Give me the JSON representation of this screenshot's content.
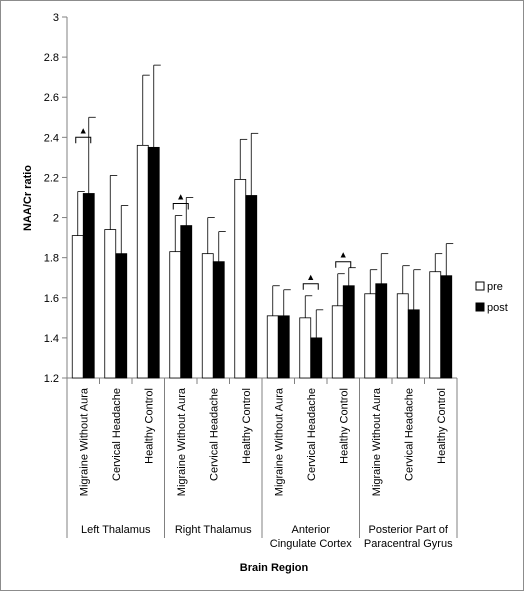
{
  "chart_data": {
    "type": "bar",
    "ylabel": "NAA/Cr ratio",
    "xlabel": "Brain Region",
    "ylim": [
      1.2,
      3
    ],
    "yticks": [
      "1.2",
      "1.4",
      "1.6",
      "1.8",
      "2",
      "2.2",
      "2.4",
      "2.6",
      "2.8",
      "3"
    ],
    "legend_position": "right",
    "grid": false,
    "categories": [
      "Migraine Without Aura",
      "Cervical Headache",
      "Healthy Control",
      "Migraine Without Aura",
      "Cervical Headache",
      "Healthy Control",
      "Migraine Without Aura",
      "Cervical Headache",
      "Healthy Control",
      "Migraine Without Aura",
      "Cervical Headache",
      "Healthy Control"
    ],
    "groups": [
      {
        "lines": [
          "Left Thalamus"
        ]
      },
      {
        "lines": [
          "Right Thalamus"
        ]
      },
      {
        "lines": [
          "Anterior",
          "Cingulate Cortex"
        ]
      },
      {
        "lines": [
          "Posterior Part of",
          "Paracentral Gyrus"
        ]
      }
    ],
    "series": [
      {
        "name": "pre",
        "color": "#ffffff",
        "values": [
          1.91,
          1.94,
          2.36,
          1.83,
          1.82,
          2.19,
          1.51,
          1.5,
          1.56,
          1.62,
          1.62,
          1.73
        ],
        "errors": [
          0.22,
          0.27,
          0.35,
          0.18,
          0.18,
          0.2,
          0.15,
          0.11,
          0.16,
          0.12,
          0.14,
          0.09
        ]
      },
      {
        "name": "post",
        "color": "#000000",
        "values": [
          2.12,
          1.82,
          2.35,
          1.96,
          1.78,
          2.11,
          1.51,
          1.4,
          1.66,
          1.67,
          1.54,
          1.71
        ],
        "errors": [
          0.38,
          0.24,
          0.41,
          0.14,
          0.15,
          0.31,
          0.13,
          0.14,
          0.09,
          0.15,
          0.2,
          0.16
        ]
      }
    ],
    "annotations": [
      {
        "category_index": 0,
        "symbol": "▲"
      },
      {
        "category_index": 3,
        "symbol": "▲"
      },
      {
        "category_index": 7,
        "symbol": "▲"
      },
      {
        "category_index": 8,
        "symbol": "▲"
      }
    ]
  }
}
